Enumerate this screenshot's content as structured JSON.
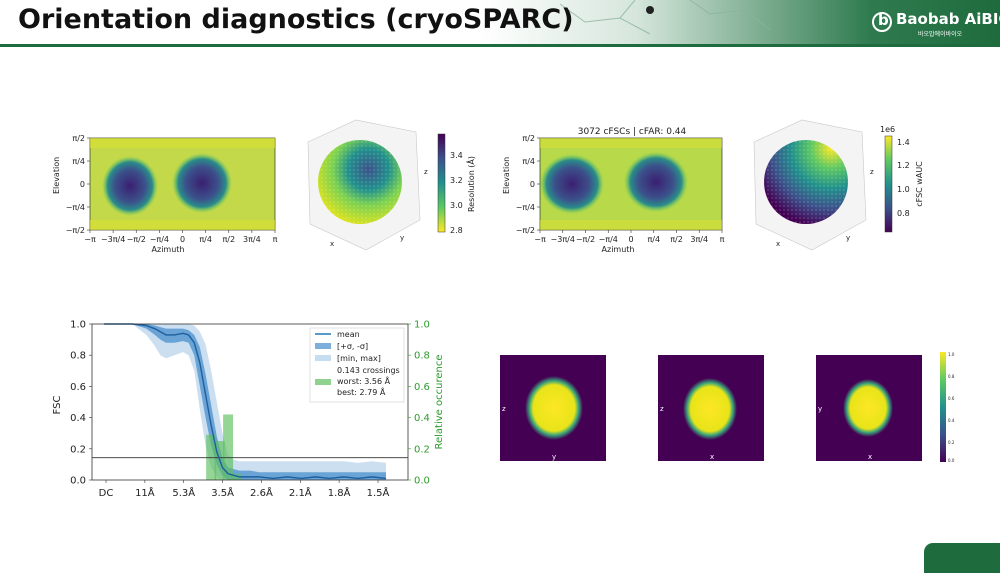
{
  "slide": {
    "title": "Orientation diagnostics (cryoSPARC)",
    "brand": "Baobab AiBIO",
    "brand_sub": "바오밥에이바이오",
    "colors": {
      "accent": "#1e6b3e",
      "viridis_dark": "#440154",
      "viridis_light": "#fde725",
      "fsc_blue": "#1f77b4",
      "occurrence_green": "#2ca02c"
    }
  },
  "panels": {
    "map1": {
      "xlabel": "Azimuth",
      "ylabel": "Elevation",
      "xticks": [
        "−π",
        "−3π/4",
        "−π/2",
        "−π/4",
        "0",
        "π/4",
        "π/2",
        "3π/4",
        "π"
      ],
      "yticks": [
        "π/2",
        "π/4",
        "0",
        "−π/4",
        "−π/2"
      ]
    },
    "sphere1": {
      "axes": [
        "x",
        "y",
        "z"
      ],
      "colorbar_label": "Resolution (Å)",
      "colorbar_ticks": [
        "3.4",
        "3.2",
        "3.0",
        "2.8"
      ]
    },
    "map2": {
      "title": "3072 cFSCs | cFAR: 0.44",
      "xlabel": "Azimuth",
      "ylabel": "Elevation",
      "xticks": [
        "−π",
        "−3π/4",
        "−π/2",
        "−π/4",
        "0",
        "π/4",
        "π/2",
        "3π/4",
        "π"
      ],
      "yticks": [
        "π/2",
        "π/4",
        "0",
        "−π/4",
        "−π/2"
      ]
    },
    "sphere2": {
      "axes": [
        "x",
        "y",
        "z"
      ],
      "colorbar_label": "cFSC wAUC",
      "colorbar_exponent": "1e6",
      "colorbar_ticks": [
        "1.4",
        "1.2",
        "1.0",
        "0.8"
      ]
    },
    "projections": [
      {
        "h": "y",
        "v": "z"
      },
      {
        "h": "x",
        "v": "z"
      },
      {
        "h": "x",
        "v": "y"
      }
    ],
    "proj_colorbar_ticks": [
      "1.0",
      "0.8",
      "0.6",
      "0.4",
      "0.2",
      "0.0"
    ]
  },
  "chart_data": {
    "type": "line",
    "ylabel": "FSC",
    "y2label": "Relative occurence",
    "xtick_labels": [
      "DC",
      "11Å",
      "5.3Å",
      "3.5Å",
      "2.6Å",
      "2.1Å",
      "1.8Å",
      "1.5Å"
    ],
    "yticks": [
      "0.0",
      "0.2",
      "0.4",
      "0.6",
      "0.8",
      "1.0"
    ],
    "y2ticks": [
      "0.0",
      "0.2",
      "0.4",
      "0.6",
      "0.8",
      "1.0"
    ],
    "ylim": [
      0,
      1
    ],
    "threshold": 0.143,
    "legend": {
      "placement": "top-right",
      "mean": "mean",
      "sigma": "[+σ, -σ]",
      "minmax": "[min, max]",
      "crossings": "0.143 crossings",
      "worst": "worst: 3.56 Å",
      "best": "best: 2.79 Å"
    },
    "x": [
      0,
      0.05,
      0.1,
      0.15,
      0.18,
      0.2,
      0.22,
      0.25,
      0.28,
      0.3,
      0.32,
      0.34,
      0.36,
      0.38,
      0.4,
      0.42,
      0.44,
      0.46,
      0.48,
      0.5,
      0.52,
      0.55,
      0.6,
      0.65,
      0.7,
      0.75,
      0.8,
      0.85,
      0.9,
      0.95,
      1.0
    ],
    "series": [
      {
        "name": "mean",
        "values": [
          1.0,
          1.0,
          1.0,
          0.99,
          0.97,
          0.95,
          0.93,
          0.93,
          0.94,
          0.93,
          0.88,
          0.75,
          0.55,
          0.35,
          0.18,
          0.08,
          0.04,
          0.03,
          0.02,
          0.02,
          0.02,
          0.02,
          0.01,
          0.02,
          0.01,
          0.02,
          0.01,
          0.02,
          0.01,
          0.02,
          0.01
        ]
      },
      {
        "name": "[+σ, -σ] upper",
        "values": [
          1.0,
          1.0,
          1.0,
          1.0,
          0.99,
          0.98,
          0.97,
          0.97,
          0.97,
          0.96,
          0.93,
          0.85,
          0.68,
          0.48,
          0.28,
          0.14,
          0.08,
          0.07,
          0.06,
          0.06,
          0.06,
          0.05,
          0.05,
          0.05,
          0.05,
          0.05,
          0.05,
          0.05,
          0.05,
          0.05,
          0.05
        ]
      },
      {
        "name": "[+σ, -σ] lower",
        "values": [
          1.0,
          1.0,
          1.0,
          0.97,
          0.93,
          0.9,
          0.88,
          0.88,
          0.89,
          0.88,
          0.8,
          0.6,
          0.4,
          0.22,
          0.1,
          0.03,
          0.0,
          0.0,
          0.0,
          0.0,
          0.0,
          0.0,
          0.0,
          0.0,
          0.0,
          0.0,
          0.0,
          0.0,
          0.0,
          0.0,
          0.0
        ]
      },
      {
        "name": "[min, max] upper",
        "values": [
          1.0,
          1.0,
          1.0,
          1.0,
          1.0,
          1.0,
          1.0,
          1.0,
          1.0,
          1.0,
          0.99,
          0.95,
          0.87,
          0.7,
          0.5,
          0.3,
          0.16,
          0.13,
          0.12,
          0.12,
          0.12,
          0.12,
          0.12,
          0.12,
          0.12,
          0.12,
          0.12,
          0.12,
          0.11,
          0.12,
          0.11
        ]
      },
      {
        "name": "[min, max] lower",
        "values": [
          1.0,
          1.0,
          1.0,
          0.93,
          0.86,
          0.8,
          0.78,
          0.8,
          0.82,
          0.8,
          0.7,
          0.45,
          0.22,
          0.08,
          0.02,
          0.0,
          0.0,
          0.0,
          0.0,
          0.0,
          0.0,
          0.0,
          0.0,
          0.0,
          0.0,
          0.0,
          0.0,
          0.0,
          0.0,
          0.0,
          0.0
        ]
      }
    ],
    "histogram": [
      {
        "x": 0.38,
        "occurence": 0.29
      },
      {
        "x": 0.41,
        "occurence": 0.25
      },
      {
        "x": 0.44,
        "occurence": 0.42
      },
      {
        "x": 0.47,
        "occurence": 0.04
      }
    ]
  }
}
